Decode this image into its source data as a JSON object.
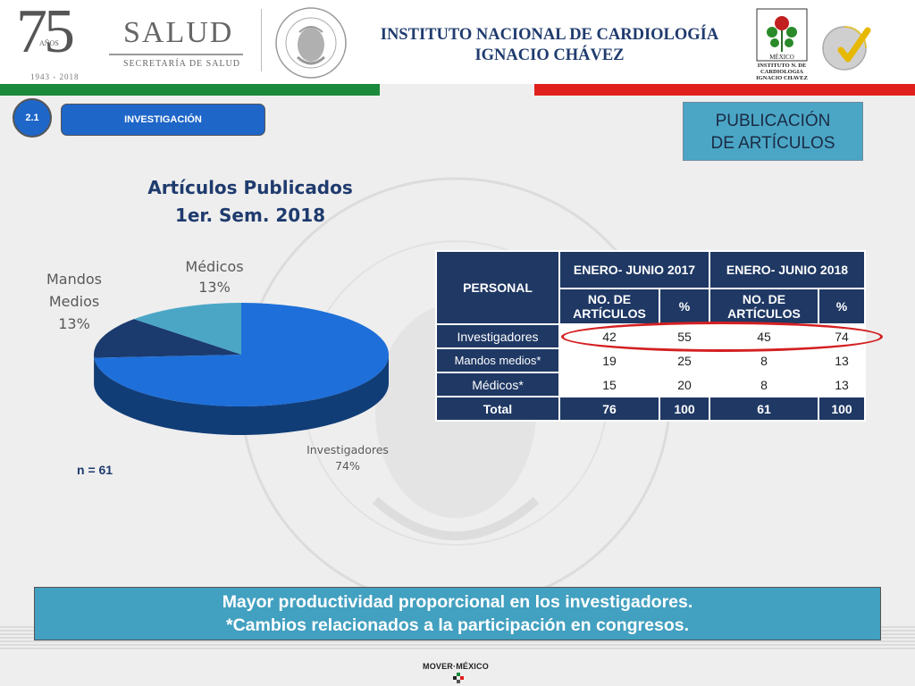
{
  "header": {
    "anniversary_number": "75",
    "anniversary_word": "AÑOS",
    "anniversary_years": "1943 - 2018",
    "salud_word": "SALUD",
    "salud_sub": "SECRETARÍA DE SALUD",
    "seal_text": "ESTADOS UNIDOS MEXICANOS",
    "institute_line1": "INSTITUTO NACIONAL DE CARDIOLOGÍA",
    "institute_line2": "IGNACIO CHÁVEZ",
    "cardio_logo_text": "MÉXICO",
    "cardio_logo_caption_1": "INSTITUTO N. DE",
    "cardio_logo_caption_2": "CARDIOLOGIA",
    "cardio_logo_caption_3": "IGNACIO CHAVEZ",
    "cert_logo_name": "certification-badge-icon"
  },
  "section": {
    "number": "2.1",
    "label": "INVESTIGACIÓN",
    "topic_line1": "PUBLICACIÓN",
    "topic_line2": "DE ARTÍCULOS"
  },
  "chart_data": {
    "type": "pie",
    "title_line1": "Artículos Publicados",
    "title_line2": "1er. Sem. 2018",
    "slices": [
      {
        "label": "Investigadores",
        "value": 74,
        "display": "74%",
        "color": "#1e6fd9"
      },
      {
        "label": "Mandos Medios",
        "value": 13,
        "display": "13%",
        "color": "#1b3a6e"
      },
      {
        "label": "Médicos",
        "value": 13,
        "display": "13%",
        "color": "#4ba6c6"
      }
    ],
    "n_label": "n = 61",
    "style": "3D"
  },
  "table": {
    "col_personal": "PERSONAL",
    "period_2017": "ENERO- JUNIO 2017",
    "period_2018": "ENERO- JUNIO 2018",
    "sub_articulos": "NO. DE ARTÍCULOS",
    "sub_pct": "%",
    "rows": [
      {
        "label": "Investigadores",
        "a2017": "42",
        "p2017": "55",
        "a2018": "45",
        "p2018": "74"
      },
      {
        "label": "Mandos medios*",
        "a2017": "19",
        "p2017": "25",
        "a2018": "8",
        "p2018": "13"
      },
      {
        "label": "Médicos*",
        "a2017": "15",
        "p2017": "20",
        "a2018": "8",
        "p2018": "13"
      }
    ],
    "total": {
      "label": "Total",
      "a2017": "76",
      "p2017": "100",
      "a2018": "61",
      "p2018": "100"
    }
  },
  "conclusion": {
    "line1": "Mayor productividad proporcional en los investigadores.",
    "line2": "*Cambios relacionados a la participación en congresos."
  },
  "footer": {
    "brand": "MOVER·MÉXICO"
  },
  "colors": {
    "primary_blue": "#1e66c8",
    "navy": "#1f3864",
    "teal": "#42a0c0",
    "green_band": "#1a8a3a",
    "red_band": "#e0201d",
    "highlight_red": "#d42022"
  }
}
